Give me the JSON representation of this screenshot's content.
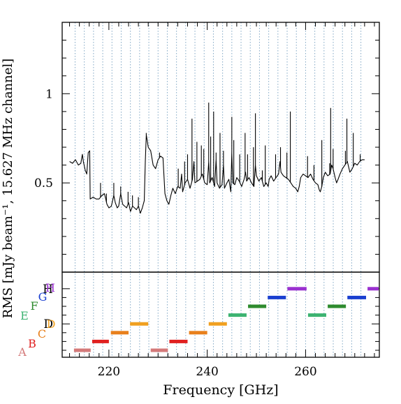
{
  "chart_data": [
    {
      "type": "line",
      "panel": "top",
      "ylabel": "RMS [mJy beam⁻¹, 15.627 MHz channel]",
      "xlabel": "Frequency [GHz]",
      "xlim": [
        210.5,
        275
      ],
      "ylim": [
        0.0,
        1.4
      ],
      "x_ticks": [
        220,
        240,
        260
      ],
      "x_tick_labels": [
        "220",
        "240",
        "260"
      ],
      "y_ticks": [
        0.5,
        1.0
      ],
      "y_tick_labels": [
        "0.5",
        "1"
      ],
      "grid": "vertical dotted lines every 1.875 GHz",
      "grid_lines_x": [
        213.125,
        215.0,
        216.875,
        218.75,
        220.625,
        222.5,
        224.375,
        226.25,
        228.125,
        230.0,
        231.875,
        233.75,
        235.625,
        237.5,
        239.375,
        241.25,
        243.125,
        245.0,
        246.875,
        248.75,
        250.625,
        252.5,
        254.375,
        256.25,
        258.125,
        260.0,
        261.875,
        263.75,
        265.625,
        267.5,
        269.375,
        271.25
      ],
      "series": [
        {
          "color": "#000000",
          "points": [
            [
              212.0,
              0.62
            ],
            [
              212.6,
              0.61
            ],
            [
              213.2,
              0.63
            ],
            [
              213.8,
              0.6
            ],
            [
              214.3,
              0.61
            ],
            [
              214.6,
              0.66
            ],
            [
              214.8,
              0.62
            ],
            [
              215.2,
              0.57
            ],
            [
              215.5,
              0.55
            ],
            [
              215.8,
              0.67
            ],
            [
              216.1,
              0.68
            ],
            [
              216.2,
              0.41
            ],
            [
              216.8,
              0.42
            ],
            [
              217.4,
              0.41
            ],
            [
              218.0,
              0.41
            ],
            [
              218.6,
              0.43
            ],
            [
              219.1,
              0.44
            ],
            [
              219.6,
              0.38
            ],
            [
              220.0,
              0.36
            ],
            [
              220.5,
              0.37
            ],
            [
              221.0,
              0.43
            ],
            [
              221.3,
              0.39
            ],
            [
              221.7,
              0.36
            ],
            [
              222.0,
              0.37
            ],
            [
              222.4,
              0.44
            ],
            [
              222.8,
              0.38
            ],
            [
              223.2,
              0.37
            ],
            [
              223.6,
              0.36
            ],
            [
              224.0,
              0.39
            ],
            [
              224.4,
              0.34
            ],
            [
              224.8,
              0.37
            ],
            [
              225.2,
              0.36
            ],
            [
              225.6,
              0.35
            ],
            [
              226.0,
              0.37
            ],
            [
              226.4,
              0.33
            ],
            [
              226.8,
              0.36
            ],
            [
              227.2,
              0.4
            ],
            [
              227.4,
              0.62
            ],
            [
              227.6,
              0.77
            ],
            [
              228.0,
              0.7
            ],
            [
              228.5,
              0.68
            ],
            [
              229.0,
              0.6
            ],
            [
              229.5,
              0.58
            ],
            [
              230.0,
              0.63
            ],
            [
              230.5,
              0.65
            ],
            [
              231.0,
              0.64
            ],
            [
              231.4,
              0.44
            ],
            [
              231.8,
              0.4
            ],
            [
              232.2,
              0.38
            ],
            [
              232.6,
              0.43
            ],
            [
              233.0,
              0.47
            ],
            [
              233.5,
              0.44
            ],
            [
              234.0,
              0.48
            ],
            [
              234.5,
              0.47
            ],
            [
              234.8,
              0.55
            ],
            [
              235.0,
              0.45
            ],
            [
              235.5,
              0.5
            ],
            [
              236.0,
              0.52
            ],
            [
              236.5,
              0.47
            ],
            [
              237.0,
              0.52
            ],
            [
              237.3,
              0.62
            ],
            [
              237.5,
              0.5
            ],
            [
              238.0,
              0.51
            ],
            [
              238.5,
              0.52
            ],
            [
              239.0,
              0.55
            ],
            [
              239.5,
              0.5
            ],
            [
              240.0,
              0.49
            ],
            [
              240.3,
              0.62
            ],
            [
              240.5,
              0.5
            ],
            [
              241.0,
              0.53
            ],
            [
              241.5,
              0.48
            ],
            [
              241.8,
              0.63
            ],
            [
              242.0,
              0.5
            ],
            [
              242.5,
              0.47
            ],
            [
              243.0,
              0.49
            ],
            [
              243.3,
              0.6
            ],
            [
              243.5,
              0.47
            ],
            [
              244.0,
              0.5
            ],
            [
              244.4,
              0.52
            ],
            [
              244.8,
              0.45
            ],
            [
              245.0,
              0.67
            ],
            [
              245.2,
              0.5
            ],
            [
              245.6,
              0.49
            ],
            [
              246.0,
              0.53
            ],
            [
              246.5,
              0.51
            ],
            [
              247.0,
              0.48
            ],
            [
              247.5,
              0.52
            ],
            [
              247.8,
              0.56
            ],
            [
              248.0,
              0.51
            ],
            [
              248.5,
              0.53
            ],
            [
              249.0,
              0.5
            ],
            [
              249.5,
              0.48
            ],
            [
              249.8,
              0.6
            ],
            [
              250.0,
              0.54
            ],
            [
              250.5,
              0.51
            ],
            [
              251.0,
              0.53
            ],
            [
              251.5,
              0.48
            ],
            [
              252.0,
              0.5
            ],
            [
              252.4,
              0.48
            ],
            [
              252.6,
              0.52
            ],
            [
              253.0,
              0.54
            ],
            [
              253.5,
              0.51
            ],
            [
              254.0,
              0.53
            ],
            [
              254.5,
              0.55
            ],
            [
              254.8,
              0.62
            ],
            [
              255.0,
              0.56
            ],
            [
              255.5,
              0.54
            ],
            [
              256.0,
              0.53
            ],
            [
              256.5,
              0.52
            ],
            [
              257.0,
              0.5
            ],
            [
              257.5,
              0.48
            ],
            [
              258.0,
              0.47
            ],
            [
              258.4,
              0.45
            ],
            [
              258.7,
              0.48
            ],
            [
              259.0,
              0.53
            ],
            [
              259.5,
              0.55
            ],
            [
              260.0,
              0.54
            ],
            [
              260.5,
              0.53
            ],
            [
              261.0,
              0.55
            ],
            [
              261.5,
              0.52
            ],
            [
              262.0,
              0.5
            ],
            [
              262.5,
              0.49
            ],
            [
              262.8,
              0.46
            ],
            [
              263.0,
              0.45
            ],
            [
              263.3,
              0.48
            ],
            [
              263.6,
              0.53
            ],
            [
              264.0,
              0.56
            ],
            [
              264.5,
              0.54
            ],
            [
              265.0,
              0.55
            ],
            [
              265.3,
              0.6
            ],
            [
              265.6,
              0.58
            ],
            [
              266.0,
              0.53
            ],
            [
              266.3,
              0.5
            ],
            [
              266.6,
              0.52
            ],
            [
              267.0,
              0.55
            ],
            [
              267.5,
              0.58
            ],
            [
              268.0,
              0.6
            ],
            [
              268.5,
              0.62
            ],
            [
              269.0,
              0.56
            ],
            [
              269.5,
              0.58
            ],
            [
              270.0,
              0.61
            ],
            [
              270.5,
              0.6
            ],
            [
              271.0,
              0.62
            ],
            [
              271.5,
              0.63
            ],
            [
              272.0,
              0.63
            ]
          ],
          "spikes": [
            [
              218.3,
              0.5
            ],
            [
              219.5,
              0.44
            ],
            [
              221.0,
              0.5
            ],
            [
              222.4,
              0.48
            ],
            [
              223.9,
              0.45
            ],
            [
              224.8,
              0.43
            ],
            [
              226.0,
              0.42
            ],
            [
              227.6,
              0.78
            ],
            [
              230.3,
              0.67
            ],
            [
              234.1,
              0.58
            ],
            [
              235.4,
              0.62
            ],
            [
              236.0,
              0.66
            ],
            [
              236.9,
              0.86
            ],
            [
              237.9,
              0.73
            ],
            [
              238.8,
              0.71
            ],
            [
              239.3,
              0.69
            ],
            [
              240.3,
              0.95
            ],
            [
              240.7,
              0.76
            ],
            [
              241.3,
              0.9
            ],
            [
              241.8,
              0.67
            ],
            [
              242.6,
              0.78
            ],
            [
              243.3,
              0.68
            ],
            [
              245.0,
              0.87
            ],
            [
              245.4,
              0.74
            ],
            [
              246.6,
              0.66
            ],
            [
              247.7,
              0.78
            ],
            [
              248.2,
              0.66
            ],
            [
              249.4,
              0.7
            ],
            [
              249.8,
              0.89
            ],
            [
              251.2,
              0.57
            ],
            [
              251.8,
              0.71
            ],
            [
              253.9,
              0.66
            ],
            [
              254.9,
              0.7
            ],
            [
              256.2,
              0.67
            ],
            [
              256.9,
              0.9
            ],
            [
              260.4,
              0.65
            ],
            [
              261.7,
              0.6
            ],
            [
              263.3,
              0.74
            ],
            [
              264.9,
              0.61
            ],
            [
              265.1,
              0.92
            ],
            [
              265.6,
              0.69
            ],
            [
              268.1,
              0.68
            ],
            [
              268.4,
              0.86
            ],
            [
              269.7,
              0.78
            ],
            [
              271.1,
              0.66
            ]
          ]
        }
      ]
    },
    {
      "type": "bar",
      "panel": "bottom",
      "orientation": "horizontal-segments",
      "xlim": [
        210.5,
        275
      ],
      "y_levels": [
        "A",
        "B",
        "C",
        "D",
        "E",
        "F",
        "G",
        "H"
      ],
      "ytick_labels": [
        "D",
        "H"
      ],
      "segments": [
        {
          "label": "A",
          "x_start": 212.9,
          "x_end": 216.3,
          "level": 1,
          "color": "#d47a7a"
        },
        {
          "label": "B",
          "x_start": 216.6,
          "x_end": 220.0,
          "level": 2,
          "color": "#e02020"
        },
        {
          "label": "C",
          "x_start": 220.4,
          "x_end": 224.0,
          "level": 3,
          "color": "#e8801c"
        },
        {
          "label": "D",
          "x_start": 224.3,
          "x_end": 228.0,
          "level": 4,
          "color": "#f0a020"
        },
        {
          "label": "A",
          "x_start": 228.5,
          "x_end": 232.0,
          "level": 1,
          "color": "#d47a7a"
        },
        {
          "label": "B",
          "x_start": 232.3,
          "x_end": 236.0,
          "level": 2,
          "color": "#e02020"
        },
        {
          "label": "C",
          "x_start": 236.3,
          "x_end": 240.0,
          "level": 3,
          "color": "#e8801c"
        },
        {
          "label": "D",
          "x_start": 240.3,
          "x_end": 244.0,
          "level": 4,
          "color": "#f0a020"
        },
        {
          "label": "E",
          "x_start": 244.3,
          "x_end": 248.0,
          "level": 5,
          "color": "#3cb371"
        },
        {
          "label": "F",
          "x_start": 248.3,
          "x_end": 252.0,
          "level": 6,
          "color": "#2e8b2e"
        },
        {
          "label": "G",
          "x_start": 252.3,
          "x_end": 256.0,
          "level": 7,
          "color": "#1a3fd0"
        },
        {
          "label": "H",
          "x_start": 256.3,
          "x_end": 260.2,
          "level": 8,
          "color": "#9a30d0"
        },
        {
          "label": "E",
          "x_start": 260.5,
          "x_end": 264.2,
          "level": 5,
          "color": "#3cb371"
        },
        {
          "label": "F",
          "x_start": 264.5,
          "x_end": 268.2,
          "level": 6,
          "color": "#2e8b2e"
        },
        {
          "label": "G",
          "x_start": 268.5,
          "x_end": 272.3,
          "level": 7,
          "color": "#1a3fd0"
        },
        {
          "label": "H",
          "x_start": 272.6,
          "x_end": 276.3,
          "level": 8,
          "color": "#9a30d0"
        }
      ],
      "legend_letters": [
        {
          "text": "A",
          "color": "#d47a7a"
        },
        {
          "text": "B",
          "color": "#e02020"
        },
        {
          "text": "C",
          "color": "#e8801c"
        },
        {
          "text": "D",
          "color": "#f0a020"
        },
        {
          "text": "E",
          "color": "#3cb371"
        },
        {
          "text": "F",
          "color": "#2e8b2e"
        },
        {
          "text": "G",
          "color": "#1a3fd0"
        },
        {
          "text": "H",
          "color": "#9a30d0"
        }
      ]
    }
  ]
}
